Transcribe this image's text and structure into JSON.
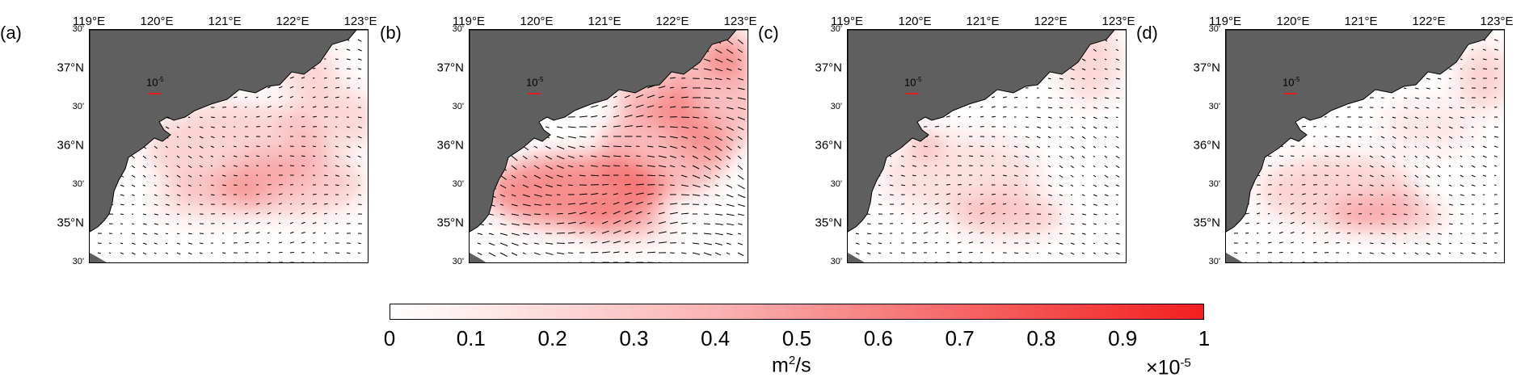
{
  "panels": [
    {
      "letter": "(a)",
      "scale_label": "10",
      "scale_exp": "-5"
    },
    {
      "letter": "(b)",
      "scale_label": "10",
      "scale_exp": "-5"
    },
    {
      "letter": "(c)",
      "scale_label": "10",
      "scale_exp": "-5"
    },
    {
      "letter": "(d)",
      "scale_label": "10",
      "scale_exp": "-5"
    }
  ],
  "lon_labels": [
    "119°E",
    "120°E",
    "121°E",
    "122°E",
    "123°E"
  ],
  "lat_labels": [
    "30'",
    "37°N",
    "30'",
    "36°N",
    "30'",
    "35°N",
    "30'"
  ],
  "colorbar": {
    "ticks": [
      "0",
      "0.1",
      "0.2",
      "0.3",
      "0.4",
      "0.5",
      "0.6",
      "0.7",
      "0.8",
      "0.9",
      "1"
    ],
    "unit_base": "m",
    "unit_exp": "2",
    "unit_rest": "/s",
    "multiplier": "×10",
    "multiplier_exp": "-5",
    "colors": {
      "low": "#ffffff",
      "high": "#f21f1f"
    }
  },
  "colors": {
    "land": "#5f5f5f",
    "arrow": "#000000",
    "scale_bar": "#e02020"
  }
}
